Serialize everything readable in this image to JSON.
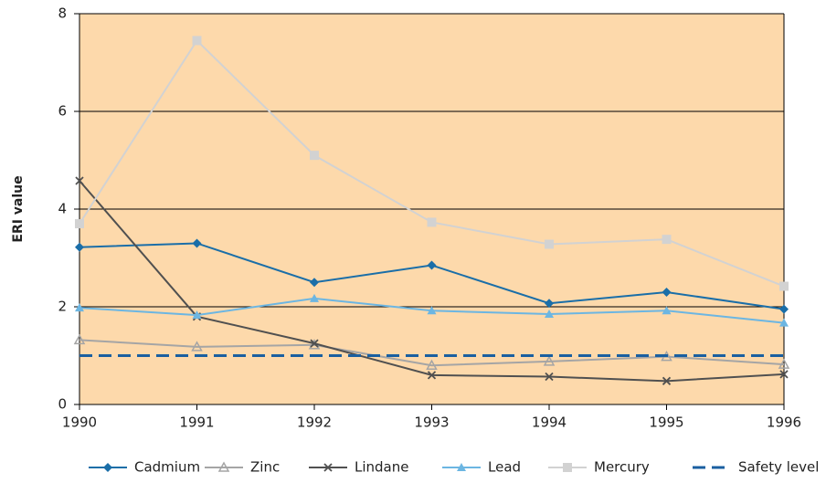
{
  "chart_data": {
    "type": "line",
    "y_label": "ERI value",
    "x": [
      1990,
      1991,
      1992,
      1993,
      1994,
      1995,
      1996
    ],
    "xlim": [
      1990,
      1996
    ],
    "xticks": [
      1990,
      1991,
      1992,
      1993,
      1994,
      1995,
      1996
    ],
    "ylim": [
      0,
      8
    ],
    "yticks": [
      0,
      2,
      4,
      6,
      8
    ],
    "grid": true,
    "background": "#fdd9ab",
    "legend": "bottom",
    "series": [
      {
        "name": "Cadmium",
        "color": "#1a6ea8",
        "marker": "diamond",
        "values": [
          3.22,
          3.3,
          2.5,
          2.85,
          2.07,
          2.3,
          1.95
        ]
      },
      {
        "name": "Zinc",
        "color": "#a5a5a5",
        "marker": "triangle-open",
        "values": [
          1.32,
          1.18,
          1.22,
          0.8,
          0.88,
          0.98,
          0.82
        ]
      },
      {
        "name": "Lindane",
        "color": "#505050",
        "marker": "cross",
        "values": [
          4.58,
          1.8,
          1.25,
          0.6,
          0.57,
          0.48,
          0.62
        ]
      },
      {
        "name": "Lead",
        "color": "#6cb6e2",
        "marker": "triangle",
        "values": [
          1.98,
          1.83,
          2.17,
          1.92,
          1.85,
          1.92,
          1.67
        ]
      },
      {
        "name": "Mercury",
        "color": "#d2d2d2",
        "marker": "square",
        "values": [
          3.7,
          7.45,
          5.1,
          3.73,
          3.28,
          3.38,
          2.42
        ]
      },
      {
        "name": "Safety level",
        "color": "#1a5fa0",
        "dashed": true,
        "values": [
          1,
          1,
          1,
          1,
          1,
          1,
          1
        ]
      }
    ]
  }
}
